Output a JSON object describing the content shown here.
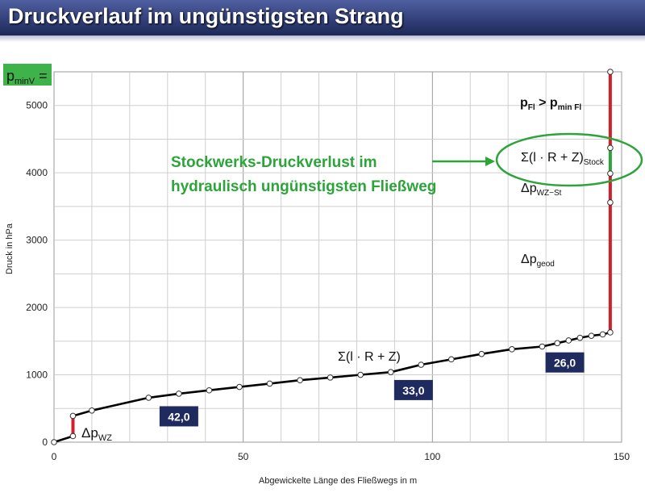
{
  "page": {
    "title": "Druckverlauf im ungünstigsten Strang"
  },
  "chart_data": {
    "type": "line",
    "xlabel": "Abgewickelte Länge des Fließwegs   in m",
    "ylabel": "Druck   in hPa",
    "xlim": [
      0,
      150
    ],
    "ylim": [
      0,
      5500
    ],
    "x_ticks": [
      0,
      50,
      100,
      150
    ],
    "y_ticks": [
      0,
      1000,
      2000,
      3000,
      4000,
      5000
    ],
    "grid": true,
    "series": [
      {
        "points": [
          [
            0,
            0
          ],
          [
            5,
            90
          ]
        ],
        "style": "black"
      },
      {
        "points": [
          [
            5,
            90
          ],
          [
            5,
            390
          ]
        ],
        "style": "red"
      },
      {
        "points": [
          [
            5,
            390
          ],
          [
            10,
            470
          ],
          [
            25,
            660
          ],
          [
            33,
            720
          ],
          [
            41,
            770
          ],
          [
            49,
            820
          ],
          [
            57,
            870
          ],
          [
            65,
            920
          ],
          [
            73,
            960
          ],
          [
            81,
            1000
          ],
          [
            89,
            1040
          ],
          [
            97,
            1150
          ],
          [
            105,
            1230
          ],
          [
            113,
            1310
          ],
          [
            121,
            1380
          ],
          [
            129,
            1420
          ],
          [
            133,
            1470
          ],
          [
            136,
            1510
          ],
          [
            139,
            1550
          ],
          [
            142,
            1580
          ],
          [
            145,
            1600
          ],
          [
            147,
            1630
          ]
        ],
        "style": "black"
      },
      {
        "points": [
          [
            147,
            1630
          ],
          [
            147,
            3560
          ]
        ],
        "style": "red"
      },
      {
        "points": [
          [
            147,
            3560
          ],
          [
            147,
            3990
          ]
        ],
        "style": "red"
      },
      {
        "points": [
          [
            147,
            3990
          ],
          [
            147,
            4370
          ]
        ],
        "style": "green"
      },
      {
        "points": [
          [
            147,
            4370
          ],
          [
            147,
            5500
          ]
        ],
        "style": "red"
      }
    ],
    "marker_points_x": [
      0,
      5,
      5,
      10,
      25,
      33,
      41,
      49,
      57,
      65,
      73,
      81,
      89,
      97,
      105,
      113,
      121,
      129,
      133,
      136,
      139,
      142,
      145,
      147,
      147,
      147,
      147,
      147
    ],
    "marker_points_y": [
      0,
      90,
      390,
      470,
      660,
      720,
      770,
      820,
      870,
      920,
      960,
      1000,
      1040,
      1150,
      1230,
      1310,
      1380,
      1420,
      1470,
      1510,
      1550,
      1580,
      1600,
      1630,
      3560,
      3990,
      4370,
      5500
    ],
    "segment_boxes": [
      {
        "label": "42,0",
        "x": 33,
        "y": 390
      },
      {
        "label": "33,0",
        "x": 95,
        "y": 780
      },
      {
        "label": "26,0",
        "x": 135,
        "y": 1190
      }
    ],
    "annotations": {
      "pmin_label_base": "p",
      "pmin_label_sub": "minV",
      "pmin_label_tail": " =",
      "dp_wz_base": "Δp",
      "dp_wz_sub": "WZ",
      "sum_mid": "Σ(l · R + Z)",
      "pfl_base": "p",
      "pfl_sub": "Fl",
      "pfl_gt": " > p",
      "pfl_sub2": "min Fl",
      "sum_stock_base": "Σ(l · R + Z)",
      "sum_stock_sub": "Stock",
      "dp_wzst_base": "Δp",
      "dp_wzst_sub": "WZ−St",
      "dp_geod_base": "Δp",
      "dp_geod_sub": "geod",
      "green_line1": "Stockwerks-Druckverlust im",
      "green_line2": "hydraulisch ungünstigsten Fließweg"
    },
    "colors": {
      "line": "#000000",
      "red": "#d0212b",
      "green": "#2ca43a",
      "box": "#1f2a5e",
      "pmin_box": "#3db34a"
    }
  }
}
